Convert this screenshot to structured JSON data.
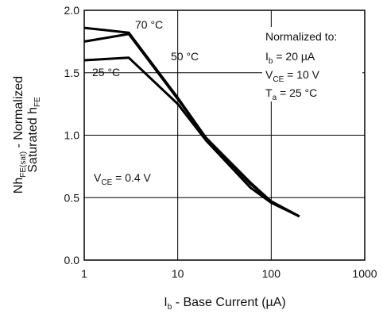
{
  "chart_data": {
    "type": "line",
    "xscale": "log",
    "xlim": [
      1,
      1000
    ],
    "ylim": [
      0.0,
      2.0
    ],
    "grid": true,
    "xticks": [
      "1",
      "10",
      "100",
      "1000"
    ],
    "yticks": [
      "0.0",
      "0.5",
      "1.0",
      "1.5",
      "2.0"
    ],
    "xlabel": {
      "main": "I",
      "sub": "b",
      "rest": " - Base Current (µA)"
    },
    "ylabel": {
      "line1_main": "Nh",
      "line1_sub": "FE(sat)",
      "line1_rest": " - Normalized",
      "line2_main": "Saturated h",
      "line2_sub": "FE"
    },
    "series": [
      {
        "name": "70 °C",
        "x": [
          1,
          3,
          10,
          20,
          60,
          100,
          200
        ],
        "y": [
          1.86,
          1.82,
          1.3,
          0.98,
          0.62,
          0.47,
          0.35
        ]
      },
      {
        "name": "50 °C",
        "x": [
          1,
          3,
          10,
          20,
          60,
          100,
          200
        ],
        "y": [
          1.75,
          1.81,
          1.29,
          0.98,
          0.61,
          0.47,
          0.35
        ]
      },
      {
        "name": "25 °C",
        "x": [
          1,
          3,
          10,
          20,
          60,
          100,
          200
        ],
        "y": [
          1.6,
          1.62,
          1.25,
          0.96,
          0.58,
          0.46,
          0.35
        ]
      }
    ],
    "condition": {
      "main": "V",
      "sub": "CE",
      "rest": " = 0.4 V"
    },
    "normalization": {
      "title": "Normalized to:",
      "lines": [
        {
          "main": "I",
          "sub": "b",
          "rest": " = 20 µA"
        },
        {
          "main": "V",
          "sub": "CE",
          "rest": " = 10 V"
        },
        {
          "main": "T",
          "sub": "a",
          "rest": " = 25 °C"
        }
      ]
    }
  }
}
